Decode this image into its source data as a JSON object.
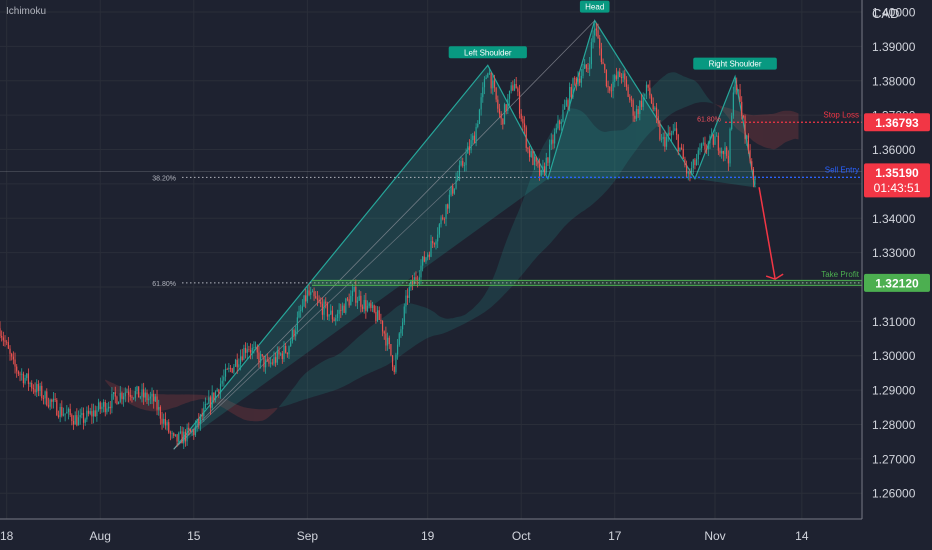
{
  "indicator": "Ichimoku",
  "currency": "CAD",
  "colors": {
    "background": "#1e2230",
    "up": "#26a69a",
    "down": "#ef5350",
    "pattern": "#26a69a",
    "stop": "#f23645",
    "entry": "#2962ff",
    "profit": "#4caf50"
  },
  "chart_data": {
    "type": "candlestick",
    "y_ticks": [
      "1.40000",
      "1.39000",
      "1.38000",
      "1.37000",
      "1.36000",
      "1.35000",
      "1.34000",
      "1.33000",
      "1.32000",
      "1.31000",
      "1.30000",
      "1.29000",
      "1.28000",
      "1.27000",
      "1.26000"
    ],
    "ylim": [
      1.2525,
      1.4035
    ],
    "x_ticks": [
      {
        "label": "18",
        "date": "2022-07-18"
      },
      {
        "label": "Aug",
        "date": "2022-08-01"
      },
      {
        "label": "15",
        "date": "2022-08-15"
      },
      {
        "label": "Sep",
        "date": "2022-09-01"
      },
      {
        "label": "19",
        "date": "2022-09-19"
      },
      {
        "label": "Oct",
        "date": "2022-10-03"
      },
      {
        "label": "17",
        "date": "2022-10-17"
      },
      {
        "label": "Nov",
        "date": "2022-11-01"
      },
      {
        "label": "14",
        "date": "2022-11-14"
      }
    ],
    "xlim": [
      "2022-07-17",
      "2022-11-23"
    ],
    "price_path": [
      [
        "2022-07-17",
        1.308
      ],
      [
        "2022-07-19",
        1.297
      ],
      [
        "2022-07-22",
        1.291
      ],
      [
        "2022-07-26",
        1.284
      ],
      [
        "2022-07-29",
        1.281
      ],
      [
        "2022-08-02",
        1.286
      ],
      [
        "2022-08-05",
        1.29
      ],
      [
        "2022-08-09",
        1.287
      ],
      [
        "2022-08-12",
        1.275
      ],
      [
        "2022-08-15",
        1.278
      ],
      [
        "2022-08-19",
        1.292
      ],
      [
        "2022-08-23",
        1.303
      ],
      [
        "2022-08-26",
        1.297
      ],
      [
        "2022-08-29",
        1.302
      ],
      [
        "2022-09-01",
        1.318
      ],
      [
        "2022-09-05",
        1.311
      ],
      [
        "2022-09-08",
        1.318
      ],
      [
        "2022-09-12",
        1.31
      ],
      [
        "2022-09-14",
        1.297
      ],
      [
        "2022-09-16",
        1.318
      ],
      [
        "2022-09-20",
        1.334
      ],
      [
        "2022-09-23",
        1.35
      ],
      [
        "2022-09-26",
        1.364
      ],
      [
        "2022-09-28",
        1.384
      ],
      [
        "2022-09-30",
        1.368
      ],
      [
        "2022-10-02",
        1.38
      ],
      [
        "2022-10-04",
        1.36
      ],
      [
        "2022-10-06",
        1.352
      ],
      [
        "2022-10-08",
        1.364
      ],
      [
        "2022-10-11",
        1.38
      ],
      [
        "2022-10-13",
        1.384
      ],
      [
        "2022-10-14",
        1.396
      ],
      [
        "2022-10-16",
        1.378
      ],
      [
        "2022-10-18",
        1.382
      ],
      [
        "2022-10-20",
        1.37
      ],
      [
        "2022-10-22",
        1.378
      ],
      [
        "2022-10-24",
        1.362
      ],
      [
        "2022-10-26",
        1.365
      ],
      [
        "2022-10-28",
        1.352
      ],
      [
        "2022-10-30",
        1.36
      ],
      [
        "2022-11-01",
        1.363
      ],
      [
        "2022-11-03",
        1.358
      ],
      [
        "2022-11-04",
        1.381
      ],
      [
        "2022-11-06",
        1.36
      ],
      [
        "2022-11-07",
        1.35
      ]
    ],
    "head_and_shoulders": {
      "labels": [
        "Left Shoulder",
        "Head",
        "Right Shoulder"
      ],
      "points": [
        [
          "2022-08-12",
          1.2728
        ],
        [
          "2022-09-28",
          1.3845
        ],
        [
          "2022-10-07",
          1.3515
        ],
        [
          "2022-10-14",
          1.3975
        ],
        [
          "2022-10-29",
          1.3515
        ],
        [
          "2022-11-04",
          1.3812
        ],
        [
          "2022-11-07",
          1.349
        ]
      ]
    },
    "fib_levels": [
      {
        "label": "38.20%",
        "value": 1.3519
      },
      {
        "label": "61.80%",
        "value": 1.3212
      },
      {
        "label": "61.80%",
        "value": 1.3679
      }
    ],
    "levels": {
      "stop_loss": {
        "label": "Stop Loss",
        "value": 1.36793,
        "price_text": "1.36793"
      },
      "sell_entry": {
        "label": "Sell Entry",
        "value": 1.3519,
        "price_text": "1.35190",
        "countdown": "01:43:51"
      },
      "take_profit": {
        "label": "Take Profit",
        "value": 1.3212,
        "price_text": "1.32120"
      }
    },
    "projection": [
      [
        "2022-11-07",
        1.3499
      ],
      [
        "2022-11-10",
        1.3223
      ]
    ]
  }
}
